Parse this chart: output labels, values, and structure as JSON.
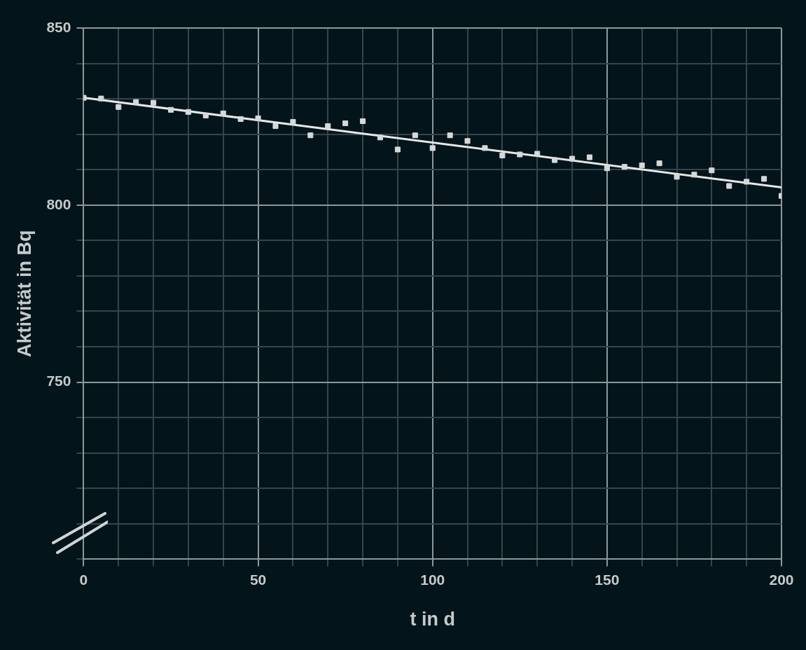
{
  "chart_data": {
    "type": "scatter",
    "xlabel": "t in d",
    "ylabel": "Aktivität in Bq",
    "x": [
      0,
      5,
      10,
      15,
      20,
      25,
      30,
      35,
      40,
      45,
      50,
      55,
      60,
      65,
      70,
      75,
      80,
      85,
      90,
      95,
      100,
      105,
      110,
      115,
      120,
      125,
      130,
      135,
      140,
      145,
      150,
      155,
      160,
      165,
      170,
      175,
      180,
      185,
      190,
      195,
      200
    ],
    "xlim": [
      0,
      200
    ],
    "ylim": [
      700,
      850
    ],
    "xticks": [
      0,
      {
        "value": 10,
        "label": null
      },
      {
        "value": 20,
        "label": null
      },
      {
        "value": 30,
        "label": null
      },
      {
        "value": 40,
        "label": null
      },
      50,
      {
        "value": 60,
        "label": null
      },
      {
        "value": 70,
        "label": null
      },
      {
        "value": 80,
        "label": null
      },
      {
        "value": 90,
        "label": null
      },
      100,
      {
        "value": 110,
        "label": null
      },
      {
        "value": 120,
        "label": null
      },
      {
        "value": 130,
        "label": null
      },
      {
        "value": 140,
        "label": null
      },
      150,
      {
        "value": 160,
        "label": null
      },
      {
        "value": 170,
        "label": null
      },
      {
        "value": 180,
        "label": null
      },
      {
        "value": 190,
        "label": null
      },
      200
    ],
    "yticks": [
      {
        "value": 700,
        "label": null
      },
      {
        "value": 710,
        "label": null
      },
      {
        "value": 720,
        "label": null
      },
      {
        "value": 730,
        "label": null
      },
      {
        "value": 740,
        "label": null
      },
      750,
      {
        "value": 760,
        "label": null
      },
      {
        "value": 770,
        "label": null
      },
      {
        "value": 780,
        "label": null
      },
      {
        "value": 790,
        "label": null
      },
      800,
      {
        "value": 810,
        "label": null
      },
      {
        "value": 820,
        "label": null
      },
      {
        "value": 830,
        "label": null
      },
      {
        "value": 840,
        "label": null
      },
      850
    ],
    "grid": true,
    "series": [
      {
        "type": "scatter",
        "marker": "square",
        "color": "#d6d9d9",
        "values": [
          830.3,
          830.1,
          827.7,
          829.1,
          828.9,
          826.9,
          826.3,
          825.3,
          825.9,
          824.3,
          824.5,
          822.3,
          823.5,
          819.7,
          822.3,
          823.1,
          823.7,
          819.1,
          815.7,
          819.7,
          816.1,
          819.7,
          818.1,
          816.1,
          814,
          814.3,
          814.5,
          812.7,
          813.1,
          813.5,
          810.4,
          810.8,
          811.2,
          811.8,
          808,
          808.6,
          809.8,
          805.4,
          806.6,
          807.4,
          802.6
        ]
      },
      {
        "type": "line",
        "color": "#e6e8e8",
        "x": [
          0,
          200
        ],
        "values": [
          830.3,
          805
        ]
      }
    ]
  }
}
